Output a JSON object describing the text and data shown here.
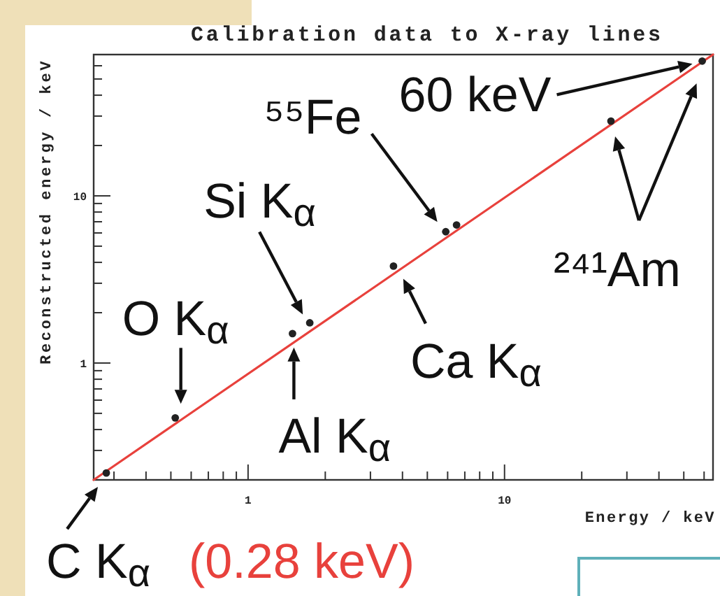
{
  "chart_data": {
    "type": "scatter",
    "title": "Calibration data to X-ray lines",
    "xlabel": "Energy / keV",
    "ylabel": "Reconstructed energy / keV",
    "log": "xy",
    "xlim": [
      0.25,
      65
    ],
    "ylim": [
      0.2,
      70
    ],
    "xticks": [
      {
        "value": 0.3,
        "label": null
      },
      {
        "value": 0.4,
        "label": null
      },
      {
        "value": 0.5,
        "label": null
      },
      {
        "value": 0.6,
        "label": null
      },
      {
        "value": 0.7,
        "label": null
      },
      {
        "value": 0.8,
        "label": null
      },
      {
        "value": 0.9,
        "label": null
      },
      1,
      {
        "value": 2,
        "label": null
      },
      {
        "value": 3,
        "label": null
      },
      {
        "value": 4,
        "label": null
      },
      {
        "value": 5,
        "label": null
      },
      {
        "value": 6,
        "label": null
      },
      {
        "value": 7,
        "label": null
      },
      {
        "value": 8,
        "label": null
      },
      {
        "value": 9,
        "label": null
      },
      10,
      {
        "value": 20,
        "label": null
      },
      {
        "value": 30,
        "label": null
      },
      {
        "value": 40,
        "label": null
      },
      {
        "value": 50,
        "label": null
      },
      {
        "value": 60,
        "label": null
      }
    ],
    "yticks": [
      {
        "value": 0.3,
        "label": null
      },
      {
        "value": 0.4,
        "label": null
      },
      {
        "value": 0.5,
        "label": null
      },
      {
        "value": 0.6,
        "label": null
      },
      {
        "value": 0.7,
        "label": null
      },
      {
        "value": 0.8,
        "label": null
      },
      {
        "value": 0.9,
        "label": null
      },
      1,
      {
        "value": 2,
        "label": null
      },
      {
        "value": 3,
        "label": null
      },
      {
        "value": 4,
        "label": null
      },
      {
        "value": 5,
        "label": null
      },
      {
        "value": 6,
        "label": null
      },
      {
        "value": 7,
        "label": null
      },
      {
        "value": 8,
        "label": null
      },
      {
        "value": 9,
        "label": null
      },
      10,
      {
        "value": 20,
        "label": null
      },
      {
        "value": 30,
        "label": null
      },
      {
        "value": 40,
        "label": null
      },
      {
        "value": 50,
        "label": null
      },
      {
        "value": 60,
        "label": null
      }
    ],
    "series": [
      {
        "type": "line",
        "color": "#e8413c",
        "x": [
          0.25,
          65
        ],
        "values": [
          0.2,
          70
        ]
      },
      {
        "color": "#222222",
        "marker": "circle",
        "x": [
          0.28,
          0.52,
          1.49,
          1.74,
          3.69,
          5.9,
          6.5,
          26,
          59
        ],
        "values": [
          0.22,
          0.47,
          1.5,
          1.74,
          3.8,
          6.1,
          6.7,
          28,
          64
        ]
      }
    ],
    "annotations": [
      {
        "text": "C K$_{α}$",
        "x": 0.28,
        "y": 0.22
      },
      {
        "text": "(0.28 keV)",
        "x": 0.28,
        "y": 0.22
      },
      {
        "text": "O K$_{α}$",
        "x": 0.52,
        "y": 0.47
      },
      {
        "text": "Si K$_{α}$",
        "x": 1.74,
        "y": 1.74
      },
      {
        "text": "Al K$_{α}$",
        "x": 1.49,
        "y": 1.5
      },
      {
        "text": "Ca K$_{α}$",
        "x": 3.69,
        "y": 3.8
      },
      {
        "text": "⁵⁵Fe",
        "x": 5.9,
        "y": 6.1
      },
      "60 keV",
      {
        "text": "²⁴¹Am",
        "x": 26,
        "y": 28
      }
    ]
  }
}
